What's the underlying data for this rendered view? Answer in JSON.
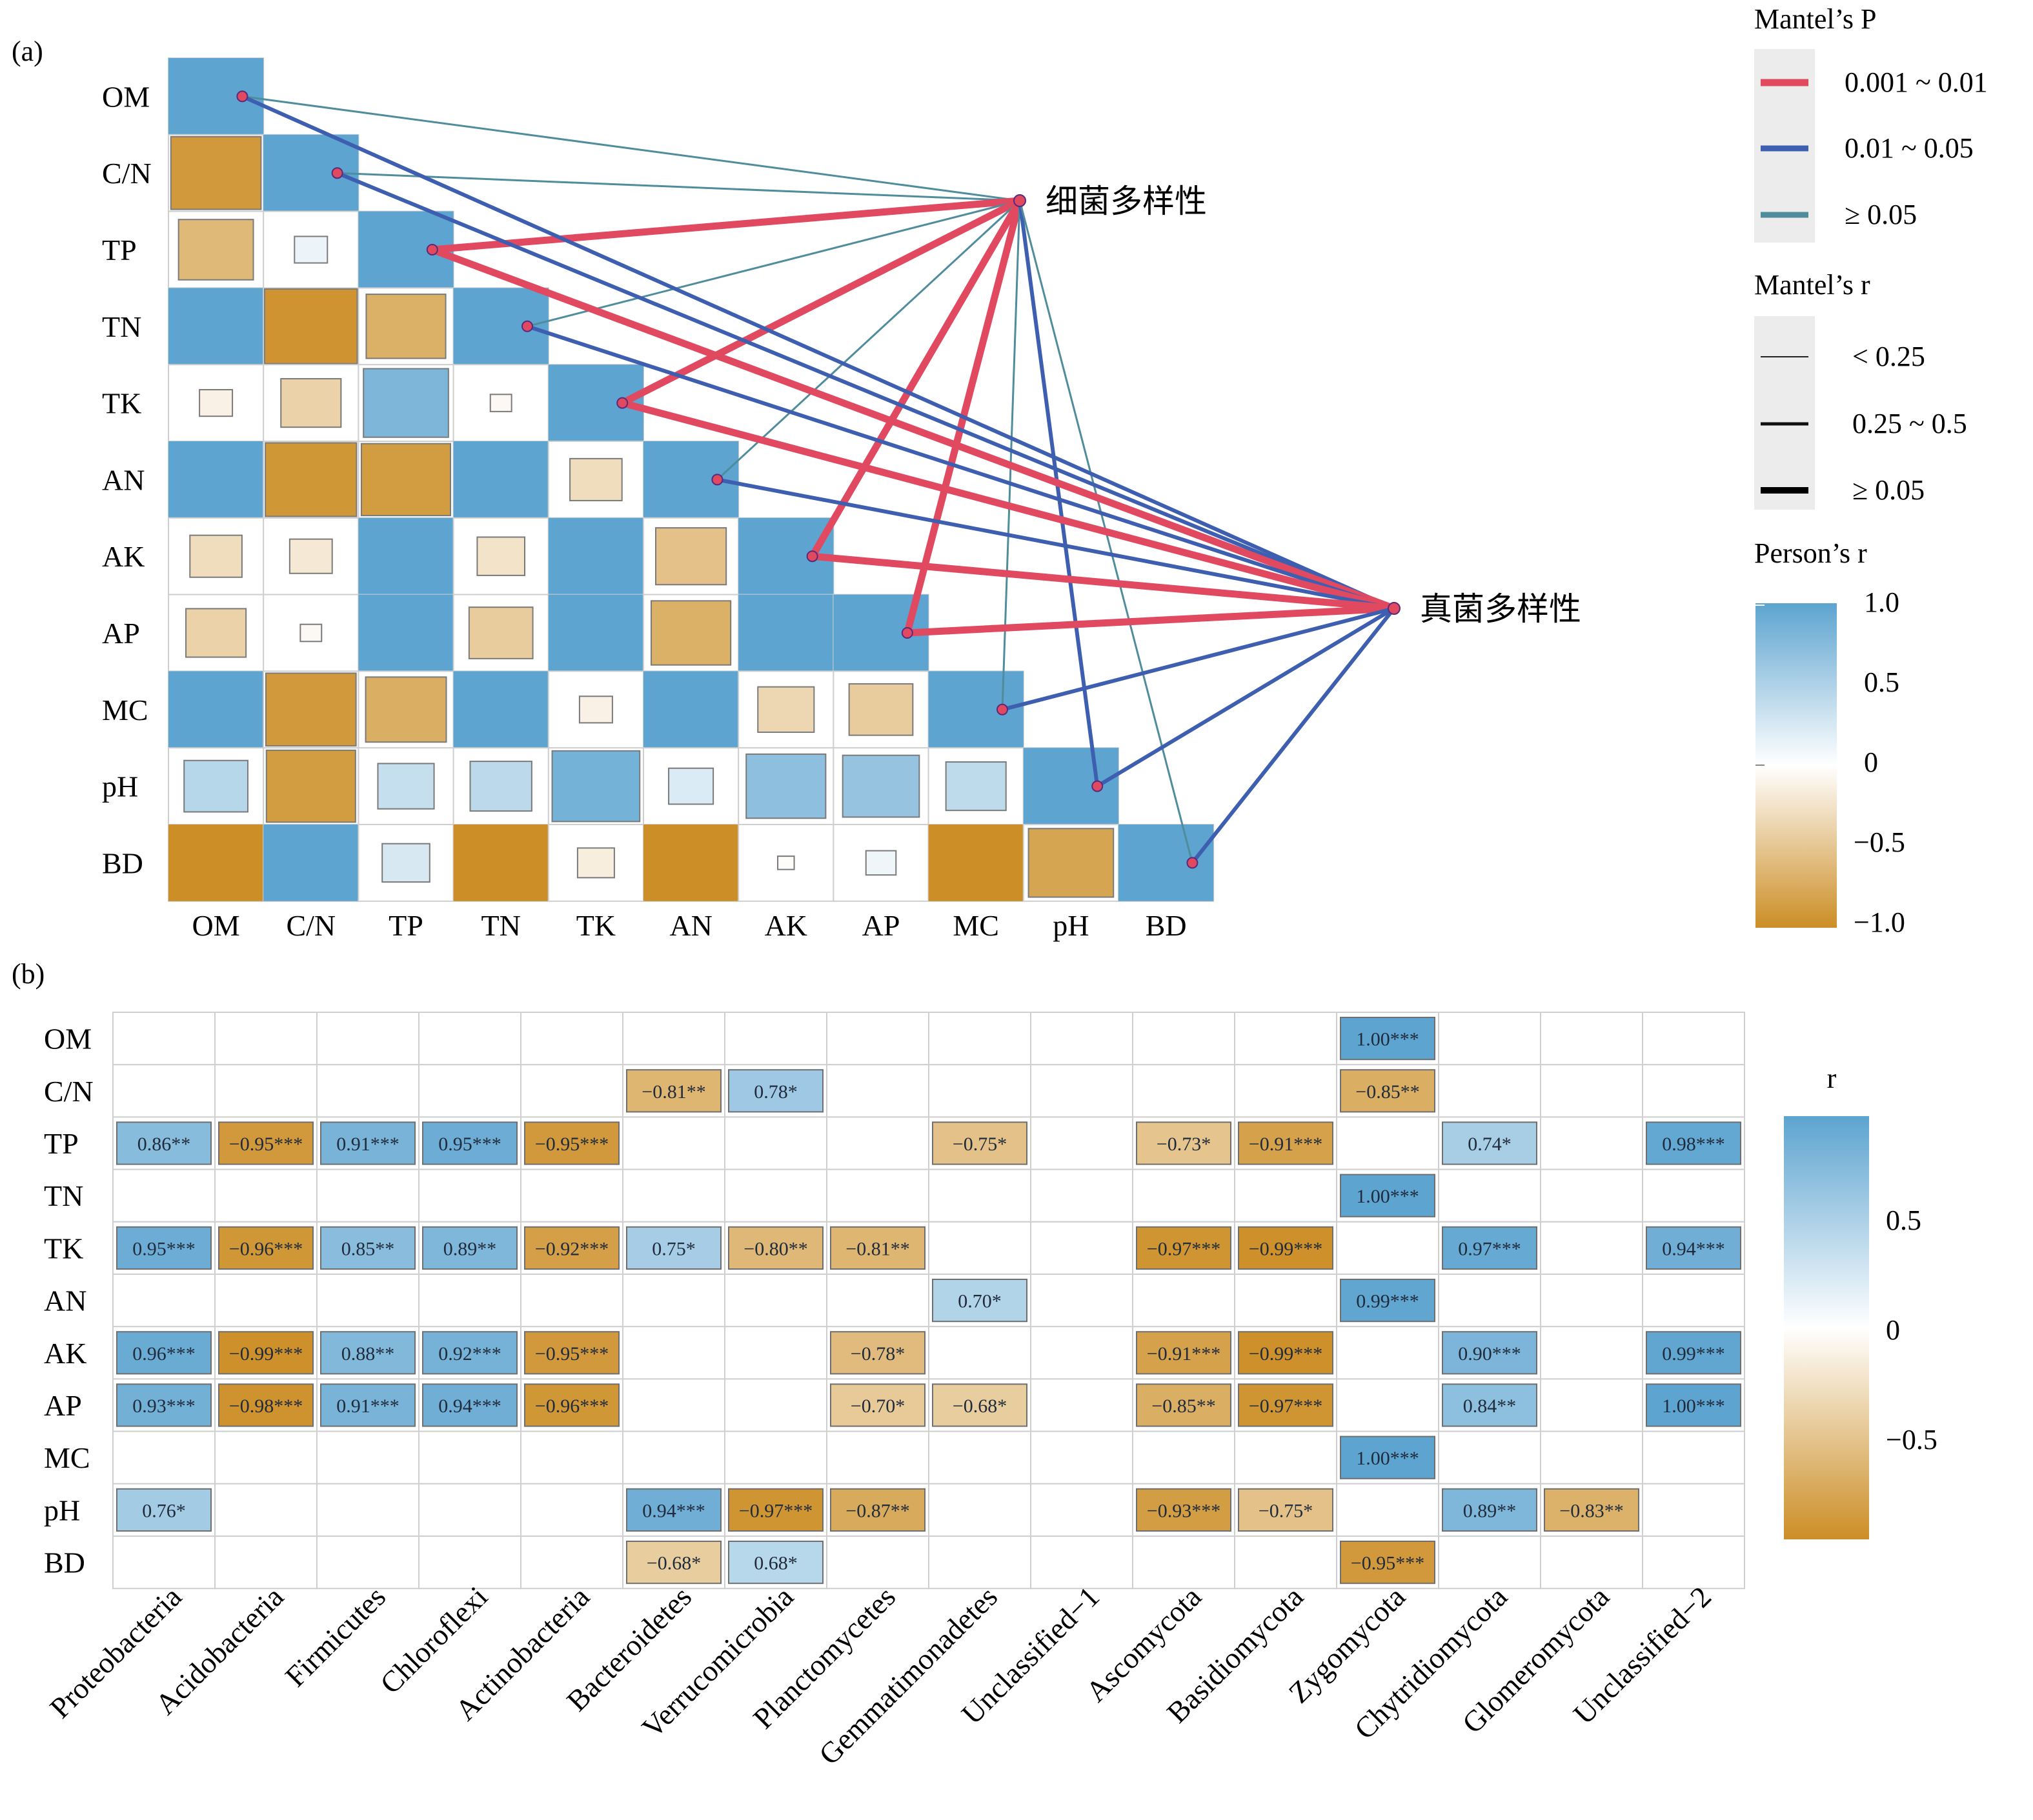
{
  "panel_a": {
    "label": "(a)",
    "variables": [
      "OM",
      "C/N",
      "TP",
      "TN",
      "TK",
      "AN",
      "AK",
      "AP",
      "MC",
      "pH",
      "BD"
    ],
    "targets": [
      "细菌多样性",
      "真菌多样性"
    ],
    "legend": {
      "p_title": "Mantel’s P",
      "p_items": [
        {
          "label": "0.001 ~ 0.01",
          "color": "#e0495f"
        },
        {
          "label": "0.01 ~ 0.05",
          "color": "#3e5fb0"
        },
        {
          "label": "≥ 0.05",
          "color": "#4f8c9c"
        }
      ],
      "r_title": "Mantel’s r",
      "r_items": [
        "< 0.25",
        "0.25 ~ 0.5",
        "≥ 0.05"
      ],
      "c_title": "Person’s r",
      "c_ticks": [
        "1.0",
        "0.5",
        "0",
        "−0.5",
        "−1.0"
      ]
    }
  },
  "panel_b": {
    "label": "(b)",
    "legend_title": "r",
    "legend_ticks": [
      "0.5",
      "0",
      "−0.5"
    ]
  },
  "chart_data": [
    {
      "type": "heatmap",
      "title": "",
      "rows": [
        "OM",
        "C/N",
        "TP",
        "TN",
        "TK",
        "AN",
        "AK",
        "AP",
        "MC",
        "pH",
        "BD"
      ],
      "columns": [
        "OM",
        "C/N",
        "TP",
        "TN",
        "TK",
        "AN",
        "AK",
        "AP",
        "MC",
        "pH",
        "BD"
      ],
      "color_range": [
        -1.0,
        1.0
      ],
      "color_legend": "Person’s r",
      "lower_triangle": [
        [
          1.0
        ],
        [
          -0.9,
          1.0
        ],
        [
          -0.62,
          0.12,
          1.0
        ],
        [
          1.0,
          -0.95,
          -0.7,
          1.0
        ],
        [
          -0.12,
          -0.4,
          0.8,
          -0.05,
          1.0
        ],
        [
          1.0,
          -0.92,
          -0.88,
          1.0,
          -0.3,
          1.0
        ],
        [
          -0.3,
          -0.2,
          1.0,
          -0.25,
          1.0,
          -0.55,
          1.0
        ],
        [
          -0.4,
          -0.05,
          1.0,
          -0.45,
          1.0,
          -0.7,
          1.0,
          1.0
        ],
        [
          1.0,
          -0.9,
          -0.72,
          1.0,
          -0.12,
          1.0,
          -0.35,
          -0.45,
          1.0
        ],
        [
          0.45,
          -0.88,
          0.35,
          0.42,
          0.85,
          0.22,
          0.7,
          0.65,
          0.4,
          1.0
        ],
        [
          -1.0,
          1.0,
          0.25,
          -1.0,
          -0.15,
          -1.0,
          -0.03,
          0.1,
          -1.0,
          -0.8,
          1.0
        ]
      ],
      "mantel_links": [
        {
          "variable": "OM",
          "target": "细菌多样性",
          "p_class": "≥ 0.05",
          "r_class": "< 0.25"
        },
        {
          "variable": "C/N",
          "target": "细菌多样性",
          "p_class": "≥ 0.05",
          "r_class": "< 0.25"
        },
        {
          "variable": "TP",
          "target": "细菌多样性",
          "p_class": "0.001 ~ 0.01",
          "r_class": "≥ 0.05"
        },
        {
          "variable": "TN",
          "target": "细菌多样性",
          "p_class": "≥ 0.05",
          "r_class": "< 0.25"
        },
        {
          "variable": "TK",
          "target": "细菌多样性",
          "p_class": "0.001 ~ 0.01",
          "r_class": "≥ 0.05"
        },
        {
          "variable": "AN",
          "target": "细菌多样性",
          "p_class": "≥ 0.05",
          "r_class": "< 0.25"
        },
        {
          "variable": "AK",
          "target": "细菌多样性",
          "p_class": "0.001 ~ 0.01",
          "r_class": "≥ 0.05"
        },
        {
          "variable": "AP",
          "target": "细菌多样性",
          "p_class": "0.001 ~ 0.01",
          "r_class": "≥ 0.05"
        },
        {
          "variable": "MC",
          "target": "细菌多样性",
          "p_class": "≥ 0.05",
          "r_class": "< 0.25"
        },
        {
          "variable": "pH",
          "target": "细菌多样性",
          "p_class": "0.01 ~ 0.05",
          "r_class": "0.25 ~ 0.5"
        },
        {
          "variable": "BD",
          "target": "细菌多样性",
          "p_class": "≥ 0.05",
          "r_class": "< 0.25"
        },
        {
          "variable": "OM",
          "target": "真菌多样性",
          "p_class": "0.01 ~ 0.05",
          "r_class": "0.25 ~ 0.5"
        },
        {
          "variable": "C/N",
          "target": "真菌多样性",
          "p_class": "0.01 ~ 0.05",
          "r_class": "0.25 ~ 0.5"
        },
        {
          "variable": "TP",
          "target": "真菌多样性",
          "p_class": "0.001 ~ 0.01",
          "r_class": "≥ 0.05"
        },
        {
          "variable": "TN",
          "target": "真菌多样性",
          "p_class": "0.01 ~ 0.05",
          "r_class": "0.25 ~ 0.5"
        },
        {
          "variable": "TK",
          "target": "真菌多样性",
          "p_class": "0.001 ~ 0.01",
          "r_class": "≥ 0.05"
        },
        {
          "variable": "AN",
          "target": "真菌多样性",
          "p_class": "0.01 ~ 0.05",
          "r_class": "0.25 ~ 0.5"
        },
        {
          "variable": "AK",
          "target": "真菌多样性",
          "p_class": "0.001 ~ 0.01",
          "r_class": "≥ 0.05"
        },
        {
          "variable": "AP",
          "target": "真菌多样性",
          "p_class": "0.001 ~ 0.01",
          "r_class": "≥ 0.05"
        },
        {
          "variable": "MC",
          "target": "真菌多样性",
          "p_class": "0.01 ~ 0.05",
          "r_class": "0.25 ~ 0.5"
        },
        {
          "variable": "pH",
          "target": "真菌多样性",
          "p_class": "0.01 ~ 0.05",
          "r_class": "0.25 ~ 0.5"
        },
        {
          "variable": "BD",
          "target": "真菌多样性",
          "p_class": "0.01 ~ 0.05",
          "r_class": "0.25 ~ 0.5"
        }
      ]
    },
    {
      "type": "heatmap",
      "title": "",
      "rows": [
        "OM",
        "C/N",
        "TP",
        "TN",
        "TK",
        "AN",
        "AK",
        "AP",
        "MC",
        "pH",
        "BD"
      ],
      "columns": [
        "Proteobacteria",
        "Acidobacteria",
        "Firmicutes",
        "Chloroflexi",
        "Actinobacteria",
        "Bacteroidetes",
        "Verrucomicrobia",
        "Planctomycetes",
        "Gemmatimonadetes",
        "Unclassified−1",
        "Ascomycota",
        "Basidiomycota",
        "Zygomycota",
        "Chytridiomycota",
        "Glomeromycota",
        "Unclassified−2"
      ],
      "color_legend": "r",
      "cells": [
        {
          "row": "OM",
          "col": "Zygomycota",
          "value": 1.0,
          "label": "1.00***"
        },
        {
          "row": "C/N",
          "col": "Bacteroidetes",
          "value": -0.81,
          "label": "−0.81**"
        },
        {
          "row": "C/N",
          "col": "Verrucomicrobia",
          "value": 0.78,
          "label": "0.78*"
        },
        {
          "row": "C/N",
          "col": "Zygomycota",
          "value": -0.85,
          "label": "−0.85**"
        },
        {
          "row": "TP",
          "col": "Proteobacteria",
          "value": 0.86,
          "label": "0.86**"
        },
        {
          "row": "TP",
          "col": "Acidobacteria",
          "value": -0.95,
          "label": "−0.95***"
        },
        {
          "row": "TP",
          "col": "Firmicutes",
          "value": 0.91,
          "label": "0.91***"
        },
        {
          "row": "TP",
          "col": "Chloroflexi",
          "value": 0.95,
          "label": "0.95***"
        },
        {
          "row": "TP",
          "col": "Actinobacteria",
          "value": -0.95,
          "label": "−0.95***"
        },
        {
          "row": "TP",
          "col": "Gemmatimonadetes",
          "value": -0.75,
          "label": "−0.75*"
        },
        {
          "row": "TP",
          "col": "Ascomycota",
          "value": -0.73,
          "label": "−0.73*"
        },
        {
          "row": "TP",
          "col": "Basidiomycota",
          "value": -0.91,
          "label": "−0.91***"
        },
        {
          "row": "TP",
          "col": "Chytridiomycota",
          "value": 0.74,
          "label": "0.74*"
        },
        {
          "row": "TP",
          "col": "Unclassified−2",
          "value": 0.98,
          "label": "0.98***"
        },
        {
          "row": "TN",
          "col": "Zygomycota",
          "value": 1.0,
          "label": "1.00***"
        },
        {
          "row": "TK",
          "col": "Proteobacteria",
          "value": 0.95,
          "label": "0.95***"
        },
        {
          "row": "TK",
          "col": "Acidobacteria",
          "value": -0.96,
          "label": "−0.96***"
        },
        {
          "row": "TK",
          "col": "Firmicutes",
          "value": 0.85,
          "label": "0.85**"
        },
        {
          "row": "TK",
          "col": "Chloroflexi",
          "value": 0.89,
          "label": "0.89**"
        },
        {
          "row": "TK",
          "col": "Actinobacteria",
          "value": -0.92,
          "label": "−0.92***"
        },
        {
          "row": "TK",
          "col": "Bacteroidetes",
          "value": 0.75,
          "label": "0.75*"
        },
        {
          "row": "TK",
          "col": "Verrucomicrobia",
          "value": -0.8,
          "label": "−0.80**"
        },
        {
          "row": "TK",
          "col": "Planctomycetes",
          "value": -0.81,
          "label": "−0.81**"
        },
        {
          "row": "TK",
          "col": "Ascomycota",
          "value": -0.97,
          "label": "−0.97***"
        },
        {
          "row": "TK",
          "col": "Basidiomycota",
          "value": -0.99,
          "label": "−0.99***"
        },
        {
          "row": "TK",
          "col": "Chytridiomycota",
          "value": 0.97,
          "label": "0.97***"
        },
        {
          "row": "TK",
          "col": "Unclassified−2",
          "value": 0.94,
          "label": "0.94***"
        },
        {
          "row": "AN",
          "col": "Gemmatimonadetes",
          "value": 0.7,
          "label": "0.70*"
        },
        {
          "row": "AN",
          "col": "Zygomycota",
          "value": 0.99,
          "label": "0.99***"
        },
        {
          "row": "AK",
          "col": "Proteobacteria",
          "value": 0.96,
          "label": "0.96***"
        },
        {
          "row": "AK",
          "col": "Acidobacteria",
          "value": -0.99,
          "label": "−0.99***"
        },
        {
          "row": "AK",
          "col": "Firmicutes",
          "value": 0.88,
          "label": "0.88**"
        },
        {
          "row": "AK",
          "col": "Chloroflexi",
          "value": 0.92,
          "label": "0.92***"
        },
        {
          "row": "AK",
          "col": "Actinobacteria",
          "value": -0.95,
          "label": "−0.95***"
        },
        {
          "row": "AK",
          "col": "Planctomycetes",
          "value": -0.78,
          "label": "−0.78*"
        },
        {
          "row": "AK",
          "col": "Ascomycota",
          "value": -0.91,
          "label": "−0.91***"
        },
        {
          "row": "AK",
          "col": "Basidiomycota",
          "value": -0.99,
          "label": "−0.99***"
        },
        {
          "row": "AK",
          "col": "Chytridiomycota",
          "value": 0.9,
          "label": "0.90***"
        },
        {
          "row": "AK",
          "col": "Unclassified−2",
          "value": 0.99,
          "label": "0.99***"
        },
        {
          "row": "AP",
          "col": "Proteobacteria",
          "value": 0.93,
          "label": "0.93***"
        },
        {
          "row": "AP",
          "col": "Acidobacteria",
          "value": -0.98,
          "label": "−0.98***"
        },
        {
          "row": "AP",
          "col": "Firmicutes",
          "value": 0.91,
          "label": "0.91***"
        },
        {
          "row": "AP",
          "col": "Chloroflexi",
          "value": 0.94,
          "label": "0.94***"
        },
        {
          "row": "AP",
          "col": "Actinobacteria",
          "value": -0.96,
          "label": "−0.96***"
        },
        {
          "row": "AP",
          "col": "Planctomycetes",
          "value": -0.7,
          "label": "−0.70*"
        },
        {
          "row": "AP",
          "col": "Gemmatimonadetes",
          "value": -0.68,
          "label": "−0.68*"
        },
        {
          "row": "AP",
          "col": "Ascomycota",
          "value": -0.85,
          "label": "−0.85**"
        },
        {
          "row": "AP",
          "col": "Basidiomycota",
          "value": -0.97,
          "label": "−0.97***"
        },
        {
          "row": "AP",
          "col": "Chytridiomycota",
          "value": 0.84,
          "label": "0.84**"
        },
        {
          "row": "AP",
          "col": "Unclassified−2",
          "value": 1.0,
          "label": "1.00***"
        },
        {
          "row": "MC",
          "col": "Zygomycota",
          "value": 1.0,
          "label": "1.00***"
        },
        {
          "row": "pH",
          "col": "Proteobacteria",
          "value": 0.76,
          "label": "0.76*"
        },
        {
          "row": "pH",
          "col": "Bacteroidetes",
          "value": 0.94,
          "label": "0.94***"
        },
        {
          "row": "pH",
          "col": "Verrucomicrobia",
          "value": -0.97,
          "label": "−0.97***"
        },
        {
          "row": "pH",
          "col": "Planctomycetes",
          "value": -0.87,
          "label": "−0.87**"
        },
        {
          "row": "pH",
          "col": "Ascomycota",
          "value": -0.93,
          "label": "−0.93***"
        },
        {
          "row": "pH",
          "col": "Basidiomycota",
          "value": -0.75,
          "label": "−0.75*"
        },
        {
          "row": "pH",
          "col": "Chytridiomycota",
          "value": 0.89,
          "label": "0.89**"
        },
        {
          "row": "pH",
          "col": "Glomeromycota",
          "value": -0.83,
          "label": "−0.83**"
        },
        {
          "row": "BD",
          "col": "Bacteroidetes",
          "value": -0.68,
          "label": "−0.68*"
        },
        {
          "row": "BD",
          "col": "Verrucomicrobia",
          "value": 0.68,
          "label": "0.68*"
        },
        {
          "row": "BD",
          "col": "Zygomycota",
          "value": -0.95,
          "label": "−0.95***"
        }
      ]
    }
  ]
}
